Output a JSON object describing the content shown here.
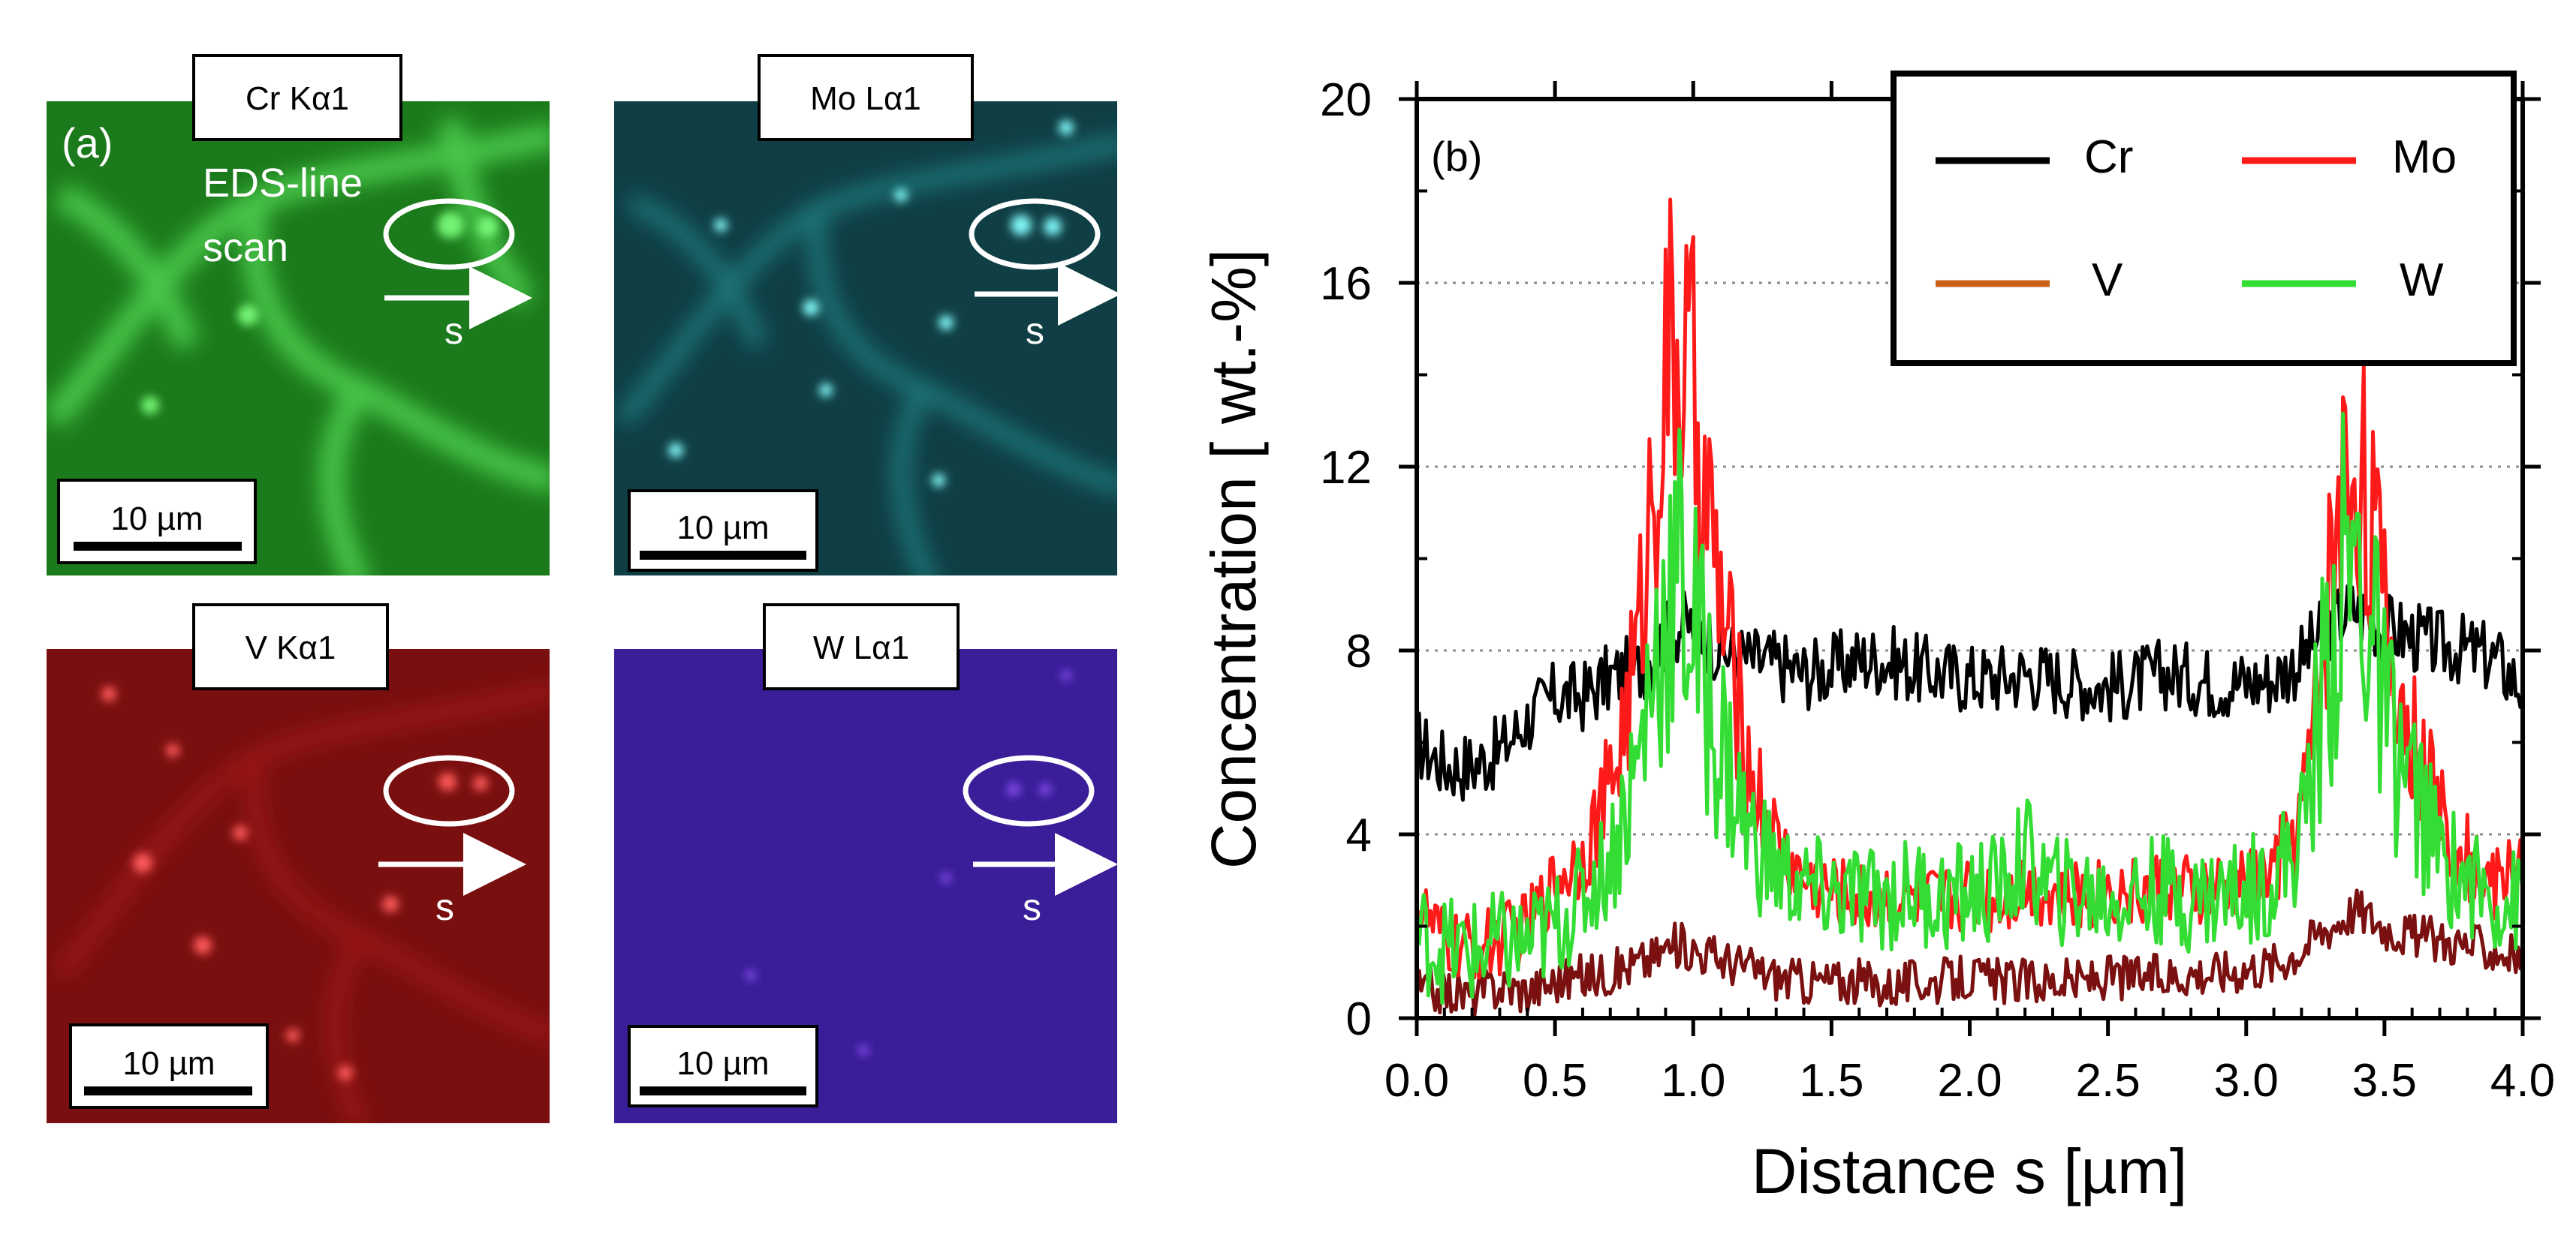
{
  "panel_a": {
    "label": "(a)",
    "annotation_line1": "EDS-line",
    "annotation_line2": "scan",
    "maps": [
      {
        "title": "Cr Kα1",
        "scale_bar": "10 µm",
        "arrow_label": "s",
        "color": "#2fbf2f"
      },
      {
        "title": "Mo Lα1",
        "scale_bar": "10 µm",
        "arrow_label": "s",
        "color": "#26c6c6"
      },
      {
        "title": "V Kα1",
        "scale_bar": "10 µm",
        "arrow_label": "s",
        "color": "#e01a1a"
      },
      {
        "title": "W Lα1",
        "scale_bar": "10 µm",
        "arrow_label": "s",
        "color": "#7a2be0"
      }
    ]
  },
  "chart_data": {
    "type": "line",
    "panel_label": "(b)",
    "xlabel": "Distance s [µm]",
    "ylabel": "Concentration [ wt.-%]",
    "xlim": [
      0.0,
      4.0
    ],
    "ylim": [
      0,
      20
    ],
    "xticks": [
      "0.0",
      "0.5",
      "1.0",
      "1.5",
      "2.0",
      "2.5",
      "3.0",
      "3.5",
      "4.0"
    ],
    "yticks": [
      "0",
      "4",
      "8",
      "12",
      "16",
      "20"
    ],
    "grid": "horizontal dotted",
    "legend_position": "top-right",
    "x": [
      0.0,
      0.1,
      0.2,
      0.3,
      0.4,
      0.5,
      0.6,
      0.7,
      0.8,
      0.85,
      0.9,
      0.95,
      1.0,
      1.05,
      1.1,
      1.2,
      1.3,
      1.4,
      1.5,
      1.6,
      1.7,
      1.8,
      1.9,
      2.0,
      2.1,
      2.2,
      2.3,
      2.4,
      2.5,
      2.6,
      2.7,
      2.8,
      2.9,
      3.0,
      3.1,
      3.2,
      3.25,
      3.3,
      3.35,
      3.4,
      3.45,
      3.5,
      3.6,
      3.7,
      3.8,
      3.9,
      4.0
    ],
    "series": [
      {
        "name": "Cr",
        "color": "#000000",
        "values": [
          6.0,
          5.5,
          5.5,
          5.8,
          6.5,
          7.0,
          7.0,
          7.4,
          7.6,
          7.9,
          8.3,
          8.5,
          8.6,
          8.3,
          8.0,
          7.8,
          7.7,
          7.5,
          7.6,
          7.8,
          7.8,
          7.6,
          7.5,
          7.4,
          7.4,
          7.5,
          7.4,
          7.3,
          7.2,
          7.3,
          7.5,
          7.4,
          7.3,
          7.3,
          7.4,
          7.8,
          8.2,
          8.5,
          8.8,
          8.9,
          8.7,
          8.5,
          8.3,
          8.1,
          8.0,
          7.8,
          7.2
        ]
      },
      {
        "name": "Mo",
        "color": "#ff1a1a",
        "values": [
          2.5,
          1.6,
          1.5,
          1.7,
          2.0,
          3.0,
          3.6,
          5.0,
          8.0,
          11.5,
          14.0,
          14.5,
          13.5,
          11.0,
          9.0,
          5.5,
          3.8,
          3.0,
          2.8,
          2.6,
          2.7,
          2.6,
          2.5,
          2.8,
          2.6,
          2.9,
          2.7,
          2.6,
          2.8,
          2.7,
          2.9,
          2.7,
          2.8,
          2.9,
          3.2,
          4.5,
          6.5,
          9.5,
          11.5,
          12.3,
          11.0,
          8.5,
          6.0,
          4.5,
          3.5,
          2.9,
          3.5
        ]
      },
      {
        "name": "V",
        "color": "#c8601a",
        "values": [
          0.6,
          0.6,
          0.5,
          0.7,
          0.6,
          0.8,
          0.9,
          1.0,
          1.2,
          1.3,
          1.5,
          1.6,
          1.5,
          1.4,
          1.3,
          1.1,
          0.9,
          0.8,
          0.8,
          0.8,
          0.7,
          0.8,
          0.8,
          0.9,
          0.8,
          0.8,
          0.8,
          0.8,
          0.9,
          0.9,
          0.9,
          1.0,
          1.0,
          1.1,
          1.2,
          1.5,
          1.8,
          2.0,
          2.2,
          2.4,
          2.2,
          2.0,
          1.8,
          1.7,
          1.6,
          1.5,
          1.3
        ]
      },
      {
        "name": "W",
        "color": "#33dd33",
        "values": [
          1.8,
          1.5,
          1.4,
          1.6,
          1.6,
          2.0,
          2.6,
          3.5,
          5.5,
          7.5,
          9.0,
          9.5,
          8.5,
          7.0,
          6.0,
          4.0,
          3.2,
          2.8,
          2.7,
          2.6,
          2.6,
          2.8,
          2.6,
          2.7,
          2.8,
          3.5,
          2.8,
          2.7,
          2.6,
          2.7,
          2.8,
          2.6,
          2.7,
          2.8,
          3.0,
          4.0,
          6.0,
          8.0,
          9.5,
          9.8,
          8.5,
          6.5,
          5.0,
          3.5,
          3.0,
          2.6,
          2.5
        ]
      }
    ]
  }
}
